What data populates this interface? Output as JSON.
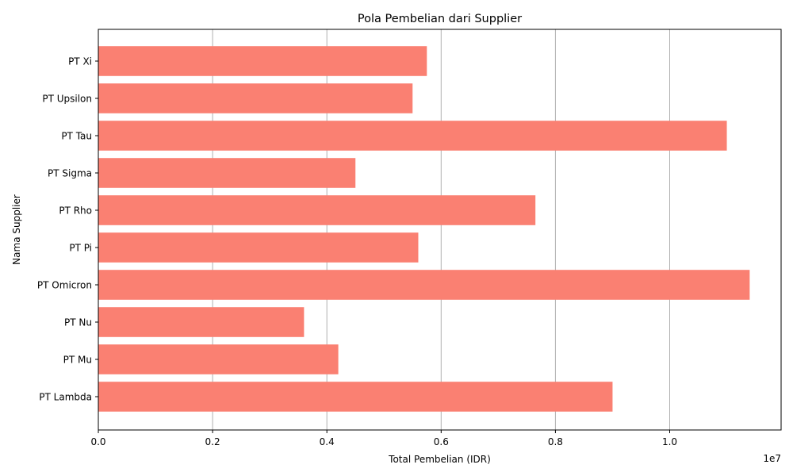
{
  "chart_data": {
    "type": "bar",
    "orientation": "horizontal",
    "title": "Pola Pembelian dari Supplier",
    "xlabel": "Total Pembelian (IDR)",
    "ylabel": "Nama Supplier",
    "x_offset_label": "1e7",
    "categories": [
      "PT Lambda",
      "PT Mu",
      "PT Nu",
      "PT Omicron",
      "PT Pi",
      "PT Rho",
      "PT Sigma",
      "PT Tau",
      "PT Upsilon",
      "PT Xi"
    ],
    "values": [
      9000000,
      4200000,
      3600000,
      11400000,
      5600000,
      7650000,
      4500000,
      11000000,
      5500000,
      5750000
    ],
    "xlim": [
      0,
      11950000
    ],
    "x_ticks": [
      0,
      2000000,
      4000000,
      6000000,
      8000000,
      10000000
    ],
    "x_tick_labels": [
      "0.0",
      "0.2",
      "0.4",
      "0.6",
      "0.8",
      "1.0"
    ],
    "grid": "x-axis",
    "bar_color": "#fa8072",
    "grid_color": "#b0b0b0"
  }
}
